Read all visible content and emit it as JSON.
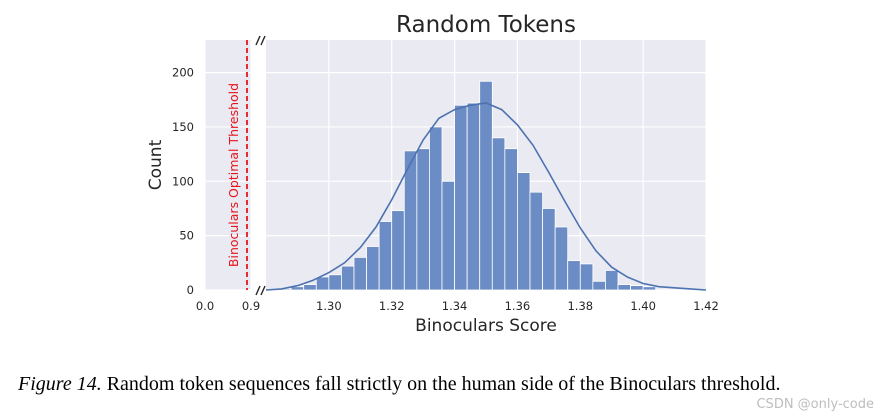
{
  "chart_data": {
    "type": "bar",
    "title": "Random Tokens",
    "xlabel": "Binoculars Score",
    "ylabel": "Count",
    "ylim": [
      0,
      230
    ],
    "yticks": [
      0,
      50,
      100,
      150,
      200
    ],
    "left_panel": {
      "xlim": [
        0.0,
        0.9
      ],
      "xticks": [
        "0.0",
        "0.9"
      ],
      "threshold_label": "Binoculars Optimal Threshold",
      "threshold_x": 0.9,
      "threshold_color": "#e8141c"
    },
    "right_panel": {
      "xlim": [
        1.28,
        1.42
      ],
      "xticks": [
        "1.30",
        "1.32",
        "1.34",
        "1.36",
        "1.38",
        "1.40",
        "1.42"
      ]
    },
    "bin_width": 0.004,
    "bins": [
      {
        "x0": 1.284,
        "count": 1
      },
      {
        "x0": 1.288,
        "count": 3
      },
      {
        "x0": 1.292,
        "count": 5
      },
      {
        "x0": 1.296,
        "count": 12
      },
      {
        "x0": 1.3,
        "count": 14
      },
      {
        "x0": 1.304,
        "count": 22
      },
      {
        "x0": 1.308,
        "count": 30
      },
      {
        "x0": 1.312,
        "count": 40
      },
      {
        "x0": 1.316,
        "count": 63
      },
      {
        "x0": 1.32,
        "count": 73
      },
      {
        "x0": 1.324,
        "count": 128
      },
      {
        "x0": 1.328,
        "count": 130
      },
      {
        "x0": 1.332,
        "count": 150
      },
      {
        "x0": 1.336,
        "count": 100
      },
      {
        "x0": 1.34,
        "count": 170
      },
      {
        "x0": 1.344,
        "count": 172
      },
      {
        "x0": 1.348,
        "count": 192
      },
      {
        "x0": 1.352,
        "count": 140
      },
      {
        "x0": 1.356,
        "count": 130
      },
      {
        "x0": 1.36,
        "count": 108
      },
      {
        "x0": 1.364,
        "count": 90
      },
      {
        "x0": 1.368,
        "count": 75
      },
      {
        "x0": 1.372,
        "count": 58
      },
      {
        "x0": 1.376,
        "count": 27
      },
      {
        "x0": 1.38,
        "count": 24
      },
      {
        "x0": 1.384,
        "count": 8
      },
      {
        "x0": 1.388,
        "count": 18
      },
      {
        "x0": 1.392,
        "count": 5
      },
      {
        "x0": 1.396,
        "count": 4
      },
      {
        "x0": 1.4,
        "count": 3
      }
    ],
    "kde": [
      [
        1.28,
        0
      ],
      [
        1.285,
        1
      ],
      [
        1.29,
        4
      ],
      [
        1.295,
        9
      ],
      [
        1.3,
        16
      ],
      [
        1.305,
        25
      ],
      [
        1.31,
        39
      ],
      [
        1.315,
        58
      ],
      [
        1.32,
        83
      ],
      [
        1.325,
        111
      ],
      [
        1.33,
        138
      ],
      [
        1.335,
        158
      ],
      [
        1.34,
        166
      ],
      [
        1.345,
        170
      ],
      [
        1.35,
        172
      ],
      [
        1.355,
        166
      ],
      [
        1.36,
        152
      ],
      [
        1.365,
        133
      ],
      [
        1.37,
        108
      ],
      [
        1.375,
        82
      ],
      [
        1.38,
        57
      ],
      [
        1.385,
        36
      ],
      [
        1.39,
        21
      ],
      [
        1.395,
        12
      ],
      [
        1.4,
        6
      ],
      [
        1.405,
        3
      ],
      [
        1.41,
        2
      ],
      [
        1.415,
        1
      ],
      [
        1.42,
        0
      ]
    ],
    "grid": true,
    "background": "#eaeaf2",
    "bar_color": "#6b8cc4",
    "line_color": "#4c72b0"
  },
  "caption": {
    "figure_label": "Figure 14.",
    "text": " Random token sequences fall strictly on the human side of the Binoculars threshold."
  },
  "watermark": "CSDN @only-code"
}
